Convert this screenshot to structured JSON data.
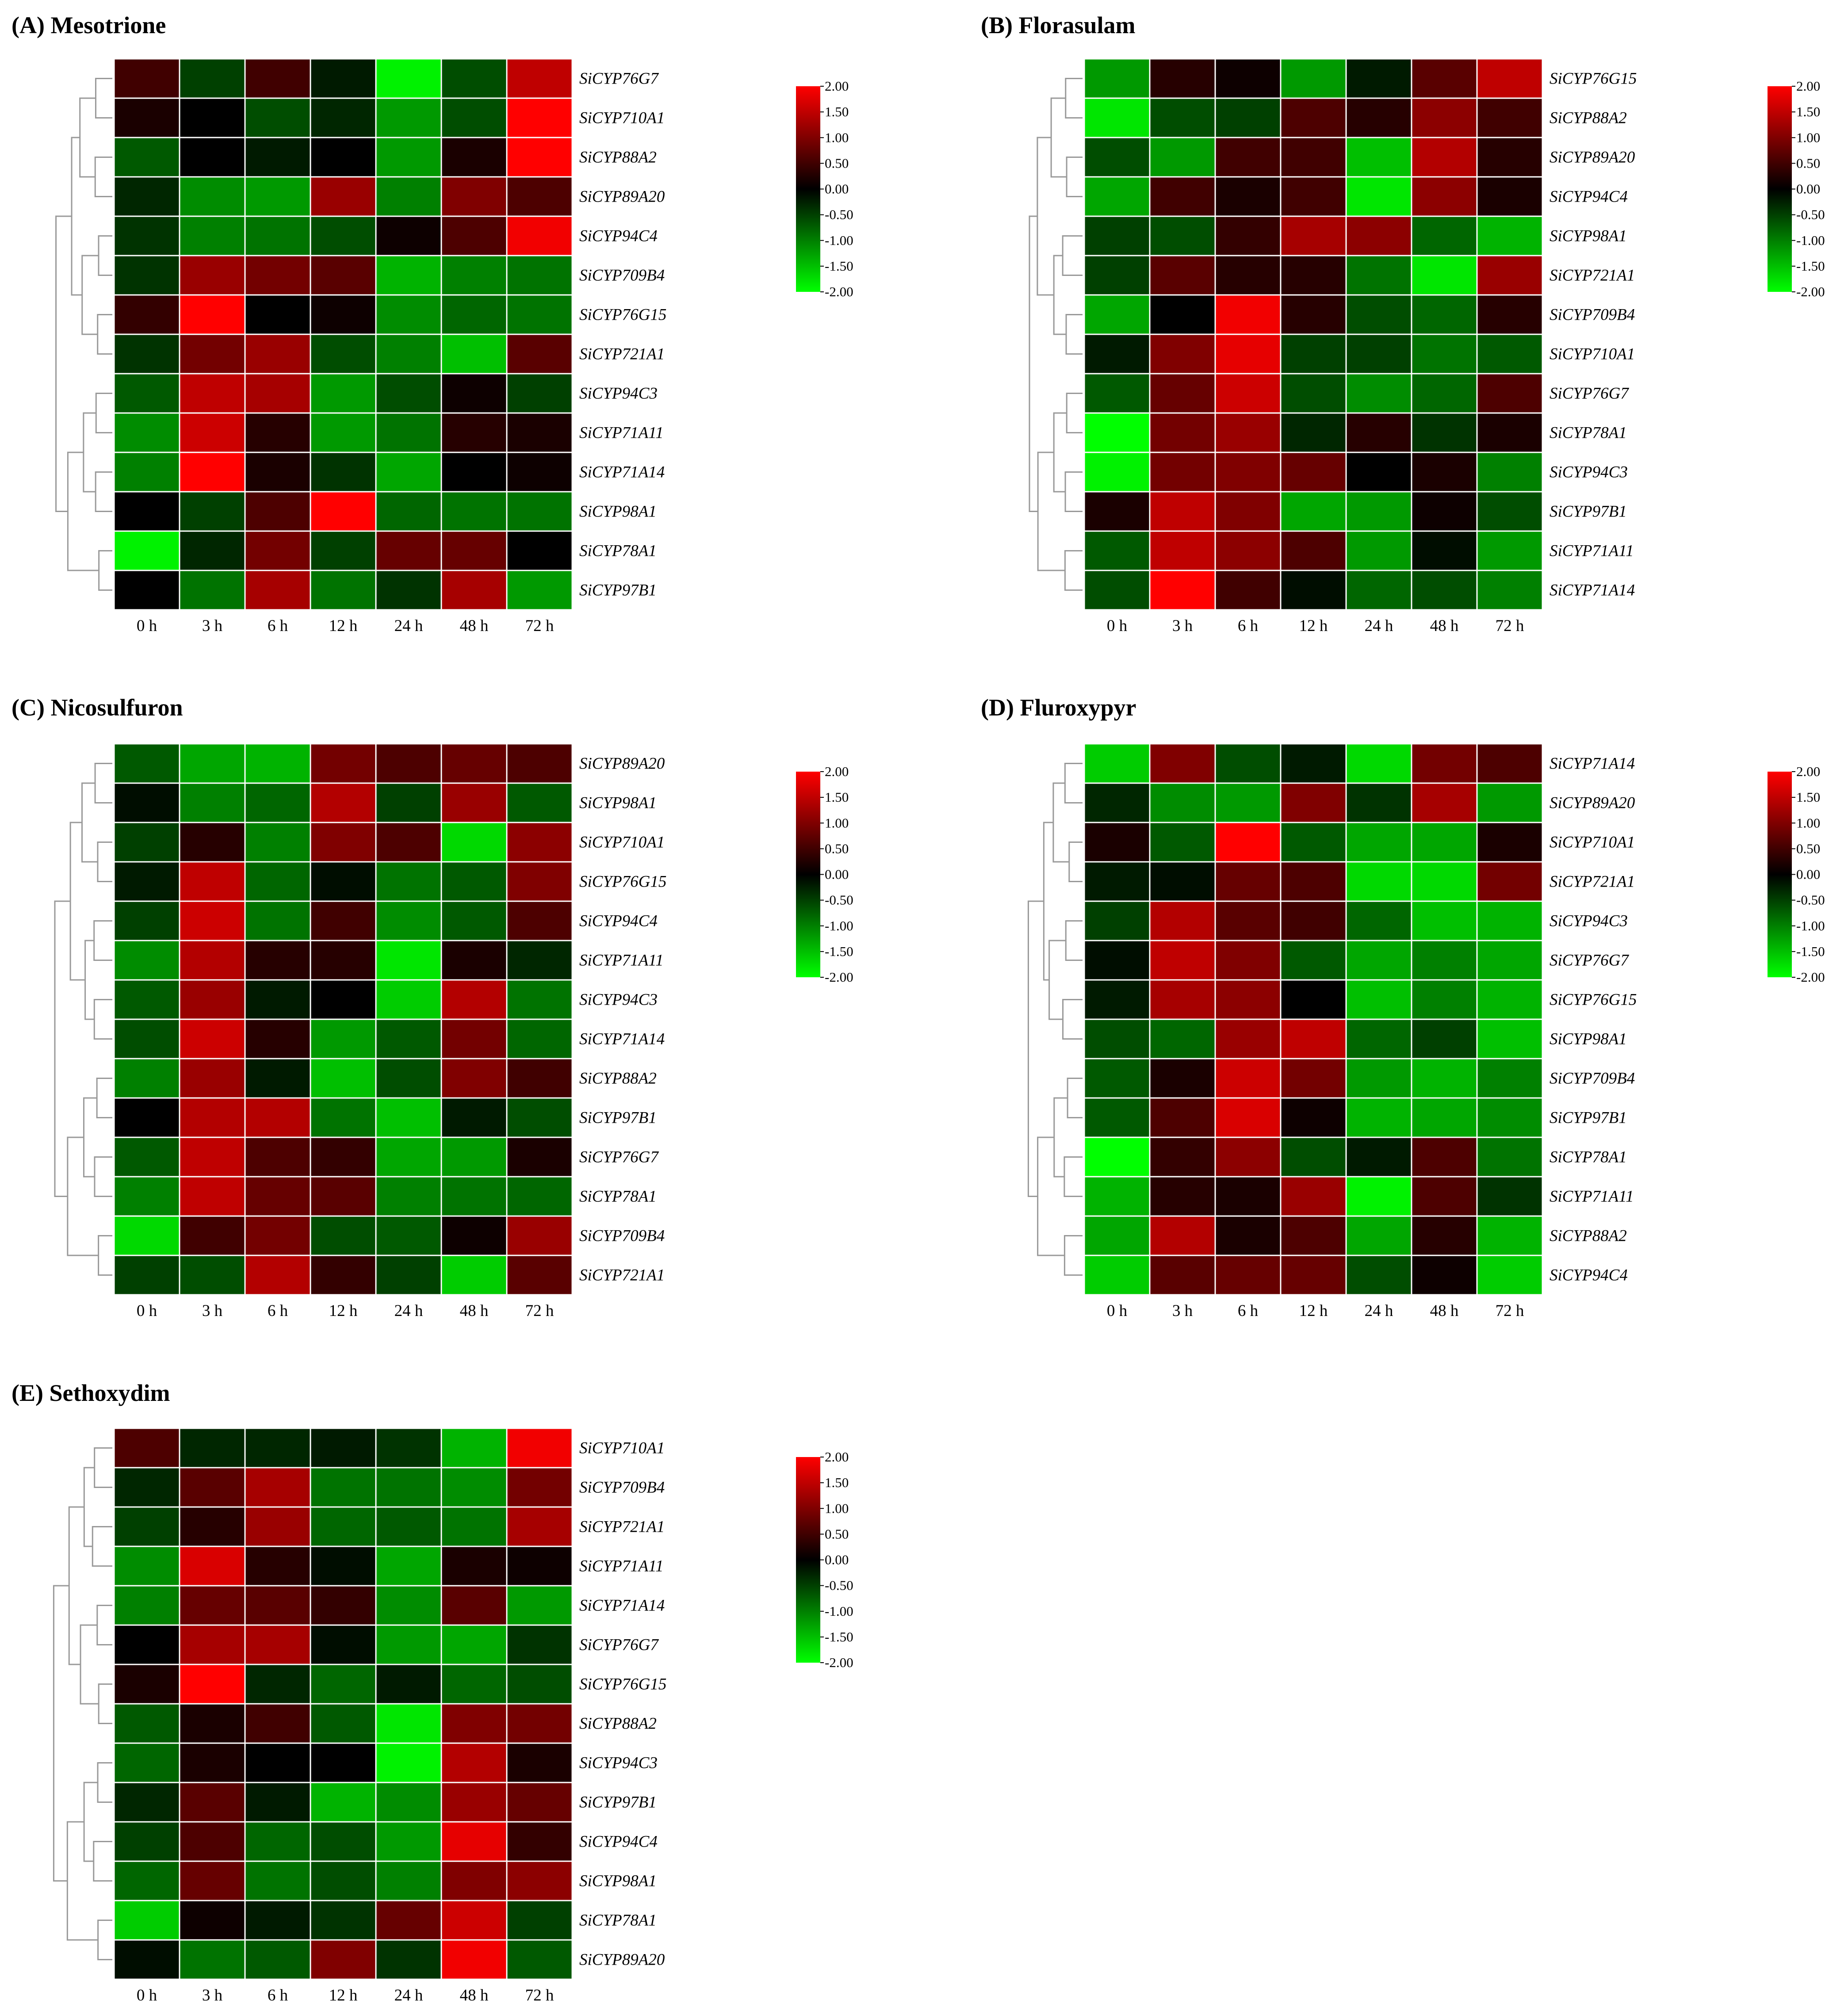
{
  "chart_data": [
    {
      "type": "heatmap",
      "title": "(A) Mesotrione",
      "columns": [
        "0 h",
        "3 h",
        "6 h",
        "12 h",
        "24 h",
        "48 h",
        "72 h"
      ],
      "rows": [
        "SiCYP76G7",
        "SiCYP710A1",
        "SiCYP88A2",
        "SiCYP89A20",
        "SiCYP94C4",
        "SiCYP709B4",
        "SiCYP76G15",
        "SiCYP721A1",
        "SiCYP94C3",
        "SiCYP71A11",
        "SiCYP71A14",
        "SiCYP98A1",
        "SiCYP78A1",
        "SiCYP97B1"
      ],
      "values": [
        [
          0.5,
          -0.5,
          0.5,
          -0.2,
          -1.9,
          -0.6,
          1.5
        ],
        [
          0.2,
          0.0,
          -0.6,
          -0.3,
          -1.2,
          -0.6,
          2.0
        ],
        [
          -0.7,
          0.0,
          -0.2,
          0.0,
          -1.2,
          0.2,
          2.0
        ],
        [
          -0.3,
          -1.1,
          -1.2,
          1.2,
          -1.0,
          1.0,
          0.6
        ],
        [
          -0.4,
          -1.0,
          -0.9,
          -0.6,
          0.1,
          0.6,
          1.9
        ],
        [
          -0.4,
          1.2,
          0.9,
          0.7,
          -1.4,
          -1.0,
          -0.9
        ],
        [
          0.4,
          2.0,
          0.0,
          0.1,
          -1.1,
          -0.8,
          -0.9
        ],
        [
          -0.4,
          0.9,
          1.2,
          -0.6,
          -1.0,
          -1.5,
          0.7
        ],
        [
          -0.7,
          1.5,
          1.3,
          -1.2,
          -0.6,
          0.1,
          -0.5
        ],
        [
          -1.1,
          1.6,
          0.3,
          -1.2,
          -0.9,
          0.3,
          0.2
        ],
        [
          -1.0,
          2.0,
          0.2,
          -0.4,
          -1.3,
          0.0,
          0.1
        ],
        [
          0.0,
          -0.5,
          0.6,
          2.0,
          -0.8,
          -0.9,
          -0.9
        ],
        [
          -1.9,
          -0.3,
          0.9,
          -0.5,
          0.8,
          0.8,
          0.0
        ],
        [
          0.0,
          -0.9,
          1.3,
          -0.9,
          -0.4,
          1.3,
          -1.2
        ]
      ],
      "scale": [
        -2.0,
        2.0
      ],
      "legend_ticks": [
        "2.00",
        "1.50",
        "1.00",
        "0.50",
        "0.00",
        "-0.50",
        "-1.00",
        "-1.50",
        "-2.00"
      ]
    },
    {
      "type": "heatmap",
      "title": "(B) Florasulam",
      "columns": [
        "0 h",
        "3 h",
        "6 h",
        "12 h",
        "24 h",
        "48 h",
        "72 h"
      ],
      "rows": [
        "SiCYP76G15",
        "SiCYP88A2",
        "SiCYP89A20",
        "SiCYP94C4",
        "SiCYP98A1",
        "SiCYP721A1",
        "SiCYP709B4",
        "SiCYP710A1",
        "SiCYP76G7",
        "SiCYP78A1",
        "SiCYP94C3",
        "SiCYP97B1",
        "SiCYP71A11",
        "SiCYP71A14"
      ],
      "values": [
        [
          -1.2,
          0.3,
          0.1,
          -1.2,
          -0.2,
          0.7,
          1.5
        ],
        [
          -1.8,
          -0.6,
          -0.5,
          0.6,
          0.3,
          1.1,
          0.5
        ],
        [
          -0.6,
          -1.2,
          0.5,
          0.5,
          -1.5,
          1.4,
          0.3
        ],
        [
          -1.3,
          0.5,
          0.2,
          0.5,
          -1.8,
          1.1,
          0.2
        ],
        [
          -0.5,
          -0.6,
          0.4,
          1.3,
          1.1,
          -0.8,
          -1.4
        ],
        [
          -0.5,
          0.7,
          0.3,
          0.3,
          -0.9,
          -1.8,
          1.2
        ],
        [
          -1.3,
          0.0,
          1.9,
          0.3,
          -0.6,
          -0.8,
          0.3
        ],
        [
          -0.2,
          1.0,
          1.8,
          -0.5,
          -0.5,
          -0.9,
          -0.7
        ],
        [
          -0.7,
          0.8,
          1.6,
          -0.6,
          -1.1,
          -0.8,
          0.6
        ],
        [
          -2.0,
          0.9,
          1.2,
          -0.3,
          0.3,
          -0.4,
          0.2
        ],
        [
          -1.9,
          0.9,
          1.0,
          0.8,
          0.0,
          0.2,
          -1.0
        ],
        [
          0.2,
          1.5,
          1.0,
          -1.3,
          -1.2,
          0.1,
          -0.6
        ],
        [
          -0.7,
          1.5,
          1.1,
          0.6,
          -1.2,
          -0.1,
          -1.2
        ],
        [
          -0.6,
          2.0,
          0.5,
          -0.1,
          -0.8,
          -0.6,
          -1.0
        ]
      ],
      "scale": [
        -2.0,
        2.0
      ],
      "legend_ticks": [
        "2.00",
        "1.50",
        "1.00",
        "0.50",
        "0.00",
        "-0.50",
        "-1.00",
        "-1.50",
        "-2.00"
      ]
    },
    {
      "type": "heatmap",
      "title": "(C) Nicosulfuron",
      "columns": [
        "0 h",
        "3 h",
        "6 h",
        "12 h",
        "24 h",
        "48 h",
        "72 h"
      ],
      "rows": [
        "SiCYP89A20",
        "SiCYP98A1",
        "SiCYP710A1",
        "SiCYP76G15",
        "SiCYP94C4",
        "SiCYP71A11",
        "SiCYP94C3",
        "SiCYP71A14",
        "SiCYP88A2",
        "SiCYP97B1",
        "SiCYP76G7",
        "SiCYP78A1",
        "SiCYP709B4",
        "SiCYP721A1"
      ],
      "values": [
        [
          -0.7,
          -1.3,
          -1.4,
          0.9,
          0.6,
          0.8,
          0.6
        ],
        [
          -0.1,
          -1.0,
          -0.8,
          1.4,
          -0.5,
          1.2,
          -0.7
        ],
        [
          -0.5,
          0.3,
          -1.0,
          1.0,
          0.6,
          -1.7,
          1.1
        ],
        [
          -0.2,
          1.5,
          -0.8,
          -0.1,
          -0.9,
          -0.7,
          1.0
        ],
        [
          -0.5,
          1.6,
          -0.9,
          0.5,
          -1.1,
          -0.7,
          0.6
        ],
        [
          -1.1,
          1.4,
          0.3,
          0.3,
          -1.8,
          0.2,
          -0.3
        ],
        [
          -0.7,
          1.2,
          -0.2,
          0.0,
          -1.6,
          1.4,
          -0.9
        ],
        [
          -0.6,
          1.6,
          0.3,
          -1.2,
          -0.7,
          0.9,
          -0.8
        ],
        [
          -1.0,
          1.2,
          -0.2,
          -1.5,
          -0.6,
          1.0,
          0.5
        ],
        [
          0.0,
          1.4,
          1.4,
          -0.9,
          -1.5,
          -0.2,
          -0.6
        ],
        [
          -0.7,
          1.5,
          0.6,
          0.4,
          -1.3,
          -1.2,
          0.2
        ],
        [
          -1.0,
          1.5,
          0.8,
          0.7,
          -1.0,
          -0.9,
          -0.8
        ],
        [
          -1.7,
          0.5,
          0.9,
          -0.6,
          -0.7,
          0.1,
          1.2
        ],
        [
          -0.5,
          -0.6,
          1.4,
          0.4,
          -0.5,
          -1.6,
          0.7
        ]
      ],
      "scale": [
        -2.0,
        2.0
      ],
      "legend_ticks": [
        "2.00",
        "1.50",
        "1.00",
        "0.50",
        "0.00",
        "-0.50",
        "-1.00",
        "-1.50",
        "-2.00"
      ]
    },
    {
      "type": "heatmap",
      "title": "(D) Fluroxypyr",
      "columns": [
        "0 h",
        "3 h",
        "6 h",
        "12 h",
        "24 h",
        "48 h",
        "72 h"
      ],
      "rows": [
        "SiCYP71A14",
        "SiCYP89A20",
        "SiCYP710A1",
        "SiCYP721A1",
        "SiCYP94C3",
        "SiCYP76G7",
        "SiCYP76G15",
        "SiCYP98A1",
        "SiCYP709B4",
        "SiCYP97B1",
        "SiCYP78A1",
        "SiCYP71A11",
        "SiCYP88A2",
        "SiCYP94C4"
      ],
      "values": [
        [
          -1.6,
          1.0,
          -0.6,
          -0.2,
          -1.7,
          0.9,
          0.6
        ],
        [
          -0.3,
          -1.1,
          -1.2,
          1.0,
          -0.4,
          1.3,
          -1.2
        ],
        [
          0.2,
          -0.7,
          2.0,
          -0.7,
          -1.3,
          -1.3,
          0.2
        ],
        [
          -0.2,
          -0.1,
          0.8,
          0.6,
          -1.7,
          -1.7,
          0.9
        ],
        [
          -0.5,
          1.4,
          0.7,
          0.5,
          -0.8,
          -1.5,
          -1.4
        ],
        [
          -0.1,
          1.5,
          1.0,
          -0.7,
          -1.3,
          -1.0,
          -1.3
        ],
        [
          -0.2,
          1.3,
          1.1,
          0.0,
          -1.5,
          -1.0,
          -1.4
        ],
        [
          -0.6,
          -0.8,
          1.2,
          1.5,
          -0.8,
          -0.5,
          -1.5
        ],
        [
          -0.7,
          0.2,
          1.6,
          0.9,
          -1.2,
          -1.4,
          -1.0
        ],
        [
          -0.7,
          0.6,
          1.7,
          0.1,
          -1.4,
          -1.3,
          -1.1
        ],
        [
          -2.0,
          0.4,
          1.1,
          -0.6,
          -0.2,
          0.6,
          -0.9
        ],
        [
          -1.4,
          0.3,
          0.2,
          1.2,
          -1.9,
          0.6,
          -0.4
        ],
        [
          -1.3,
          1.4,
          0.2,
          0.6,
          -1.3,
          0.3,
          -1.4
        ],
        [
          -1.6,
          0.7,
          0.8,
          0.8,
          -0.6,
          0.1,
          -1.6
        ]
      ],
      "scale": [
        -2.0,
        2.0
      ],
      "legend_ticks": [
        "2.00",
        "1.50",
        "1.00",
        "0.50",
        "0.00",
        "-0.50",
        "-1.00",
        "-1.50",
        "-2.00"
      ]
    },
    {
      "type": "heatmap",
      "title": "(E) Sethoxydim",
      "columns": [
        "0 h",
        "3 h",
        "6 h",
        "12 h",
        "24 h",
        "48 h",
        "72 h"
      ],
      "rows": [
        "SiCYP710A1",
        "SiCYP709B4",
        "SiCYP721A1",
        "SiCYP71A11",
        "SiCYP71A14",
        "SiCYP76G7",
        "SiCYP76G15",
        "SiCYP88A2",
        "SiCYP94C3",
        "SiCYP97B1",
        "SiCYP94C4",
        "SiCYP98A1",
        "SiCYP78A1",
        "SiCYP89A20"
      ],
      "values": [
        [
          0.6,
          -0.3,
          -0.3,
          -0.2,
          -0.4,
          -1.4,
          1.9
        ],
        [
          -0.3,
          0.7,
          1.3,
          -0.9,
          -0.9,
          -1.1,
          0.9
        ],
        [
          -0.5,
          0.3,
          1.2,
          -0.8,
          -0.7,
          -0.9,
          1.3
        ],
        [
          -1.1,
          1.7,
          0.3,
          -0.1,
          -1.3,
          0.2,
          0.1
        ],
        [
          -1.0,
          0.8,
          0.7,
          0.4,
          -1.1,
          0.7,
          -1.2
        ],
        [
          0.0,
          1.3,
          1.3,
          -0.1,
          -1.2,
          -1.3,
          -0.4
        ],
        [
          0.2,
          2.0,
          -0.3,
          -0.8,
          -0.2,
          -0.8,
          -0.6
        ],
        [
          -0.7,
          0.2,
          0.5,
          -0.7,
          -1.8,
          1.0,
          0.9
        ],
        [
          -0.8,
          0.2,
          0.0,
          0.0,
          -1.9,
          1.4,
          0.2
        ],
        [
          -0.3,
          0.7,
          -0.2,
          -1.4,
          -1.1,
          1.2,
          0.8
        ],
        [
          -0.5,
          0.6,
          -0.8,
          -0.6,
          -1.2,
          1.8,
          0.4
        ],
        [
          -0.8,
          0.8,
          -0.9,
          -0.6,
          -1.0,
          1.0,
          1.1
        ],
        [
          -1.6,
          0.1,
          -0.2,
          -0.4,
          0.8,
          1.6,
          -0.5
        ],
        [
          -0.1,
          -0.9,
          -0.7,
          1.0,
          -0.4,
          1.9,
          -0.7
        ]
      ],
      "scale": [
        -2.0,
        2.0
      ],
      "legend_ticks": [
        "2.00",
        "1.50",
        "1.00",
        "0.50",
        "0.00",
        "-0.50",
        "-1.00",
        "-1.50",
        "-2.00"
      ]
    }
  ],
  "colors": {
    "low": "#00ff00",
    "mid": "#000000",
    "high": "#ff0000",
    "cell_border": "#ffffff",
    "dendrogram": "#999999"
  }
}
